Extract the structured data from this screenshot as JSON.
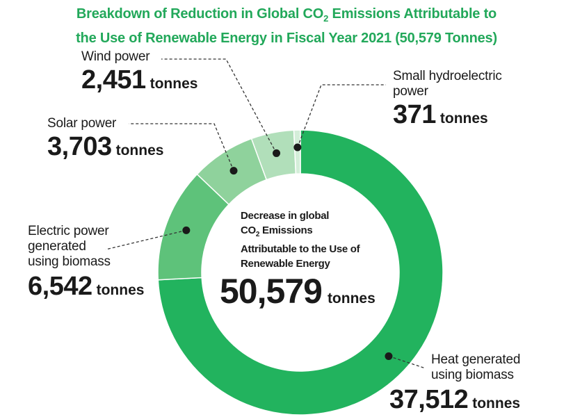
{
  "chart_data": {
    "type": "pie",
    "title_line1": "Breakdown of Reduction in Global CO",
    "title_sub": "2",
    "title_line1_end": " Emissions Attributable to",
    "title_line2": "the Use of Renewable Energy in Fiscal Year 2021 (50,579 Tonnes)",
    "slices": [
      {
        "label_lines": [
          "Heat generated",
          "using biomass"
        ],
        "value": 37512,
        "value_text": "37,512",
        "color": "#22b35e"
      },
      {
        "label_lines": [
          "Electric power",
          "generated",
          "using biomass"
        ],
        "value": 6542,
        "value_text": "6,542",
        "color": "#5ec27a"
      },
      {
        "label_lines": [
          "Solar power"
        ],
        "value": 3703,
        "value_text": "3,703",
        "color": "#8fd29c"
      },
      {
        "label_lines": [
          "Wind power"
        ],
        "value": 2451,
        "value_text": "2,451",
        "color": "#b1dfba"
      },
      {
        "label_lines": [
          "Small hydroelectric",
          "power"
        ],
        "value": 371,
        "value_text": "371",
        "color": "#d4eed9"
      }
    ],
    "unit": "tonnes",
    "center_lines": [
      "Decrease in global",
      "CO",
      "2",
      " Emissions",
      "Attributable to the Use of",
      "Renewable Energy"
    ],
    "total_text": "50,579"
  }
}
